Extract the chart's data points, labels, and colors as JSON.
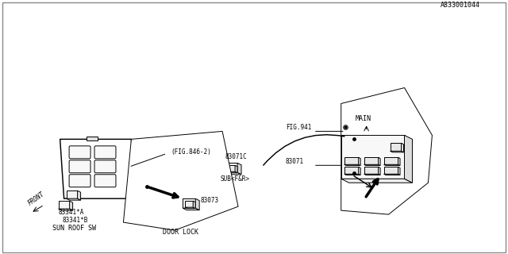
{
  "title": "",
  "bg_color": "#ffffff",
  "line_color": "#000000",
  "fig_width": 6.4,
  "fig_height": 3.2,
  "dpi": 100,
  "labels": {
    "fig846": "(FIG.846-2)",
    "part83071C": "83071C",
    "subf_r": "SUB<F&R>",
    "part83341A": "83341*A",
    "part83341B": "83341*B",
    "sun_roof": "SUN ROOF SW",
    "part83071": "83071",
    "fig941": "FIG.941",
    "main": "MAIN",
    "part83073": "83073",
    "door_lock": "DOOR LOCK",
    "front": "FRONT",
    "diagram_id": "A833001044"
  }
}
